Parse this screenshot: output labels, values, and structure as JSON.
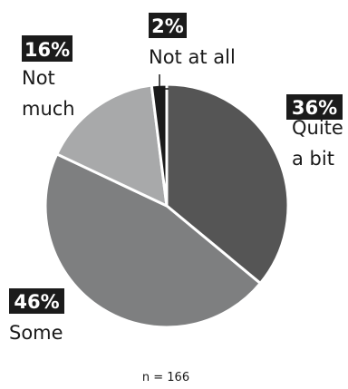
{
  "chart_data": {
    "type": "pie",
    "slices": [
      {
        "label_lines": [
          "Quite",
          "a bit"
        ],
        "value": 36,
        "value_label": "36%",
        "color": "#555555"
      },
      {
        "label_lines": [
          "Some"
        ],
        "value": 46,
        "value_label": "46%",
        "color": "#7e7f80"
      },
      {
        "label_lines": [
          "Not",
          "much"
        ],
        "value": 16,
        "value_label": "16%",
        "color": "#a8a9aa"
      },
      {
        "label_lines": [
          "Not at all"
        ],
        "value": 2,
        "value_label": "2%",
        "color": "#1b1b1b"
      }
    ],
    "start": "12 o'clock",
    "direction": "clockwise",
    "note": "n = 166",
    "badge_color": "#1b1b1b",
    "border_color": "#ffffff"
  }
}
